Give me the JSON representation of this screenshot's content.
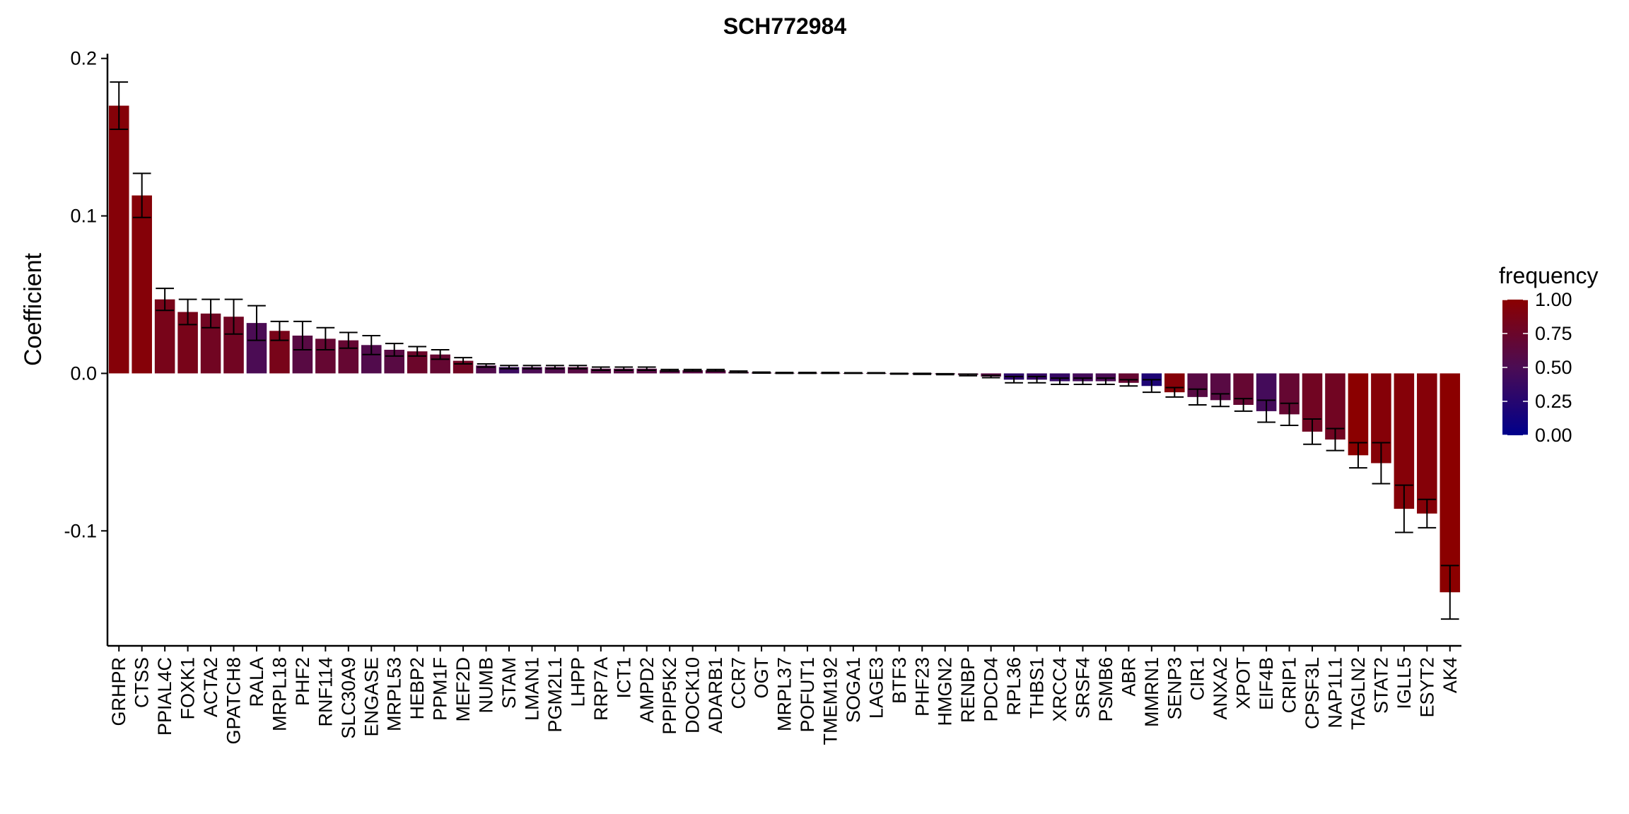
{
  "chart_data": {
    "type": "bar",
    "title": "SCH772984",
    "xlabel": "",
    "ylabel": "Coefficient",
    "ylim": [
      -0.173,
      0.203
    ],
    "yticks": [
      {
        "value": 0.2,
        "label": "0.2"
      },
      {
        "value": 0.1,
        "label": "0.1"
      },
      {
        "value": 0.0,
        "label": "0.0"
      },
      {
        "value": -0.1,
        "label": "-0.1"
      }
    ],
    "grid": false,
    "legend": {
      "title": "frequency",
      "position": "right",
      "ticks": [
        {
          "value": 1.0,
          "label": "1.00"
        },
        {
          "value": 0.75,
          "label": "0.75"
        },
        {
          "value": 0.5,
          "label": "0.50"
        },
        {
          "value": 0.25,
          "label": "0.25"
        },
        {
          "value": 0.0,
          "label": "0.00"
        }
      ],
      "colors": {
        "low": "#00008b",
        "mid": "#4b0c54",
        "high": "#8b0000"
      }
    },
    "categories": [
      "GRHPR",
      "CTSS",
      "PPIAL4C",
      "FOXK1",
      "ACTA2",
      "GPATCH8",
      "RALA",
      "MRPL18",
      "PHF2",
      "RNF114",
      "SLC30A9",
      "ENGASE",
      "MRPL53",
      "HEBP2",
      "PPM1F",
      "MEF2D",
      "NUMB",
      "STAM",
      "LMAN1",
      "PGM2L1",
      "LHPP",
      "RRP7A",
      "ICT1",
      "AMPD2",
      "PPIP5K2",
      "DOCK10",
      "ADARB1",
      "CCR7",
      "OGT",
      "MRPL37",
      "POFUT1",
      "TMEM192",
      "SOGA1",
      "LAGE3",
      "BTF3",
      "PHF23",
      "HMGN2",
      "RENBP",
      "PDCD4",
      "RPL36",
      "THBS1",
      "XRCC4",
      "SRSF4",
      "PSMB6",
      "ABR",
      "MMRN1",
      "SENP3",
      "CIR1",
      "ANXA2",
      "XPOT",
      "EIF4B",
      "CRIP1",
      "CPSF3L",
      "NAP1L1",
      "TAGLN2",
      "STAT2",
      "IGLL5",
      "ESYT2",
      "AK4"
    ],
    "values": [
      0.17,
      0.113,
      0.047,
      0.039,
      0.038,
      0.036,
      0.032,
      0.027,
      0.024,
      0.022,
      0.021,
      0.018,
      0.015,
      0.014,
      0.012,
      0.008,
      0.005,
      0.004,
      0.004,
      0.004,
      0.004,
      0.003,
      0.003,
      0.003,
      0.002,
      0.002,
      0.002,
      0.001,
      0.0005,
      0.0003,
      0.0003,
      0.0003,
      0.0002,
      0.0002,
      -0.0002,
      -0.0003,
      -0.0005,
      -0.001,
      -0.002,
      -0.004,
      -0.004,
      -0.005,
      -0.005,
      -0.005,
      -0.006,
      -0.008,
      -0.012,
      -0.015,
      -0.017,
      -0.02,
      -0.024,
      -0.026,
      -0.037,
      -0.042,
      -0.052,
      -0.057,
      -0.086,
      -0.089,
      -0.139
    ],
    "error": [
      0.015,
      0.014,
      0.007,
      0.008,
      0.009,
      0.011,
      0.011,
      0.006,
      0.009,
      0.007,
      0.005,
      0.006,
      0.004,
      0.003,
      0.003,
      0.002,
      0.001,
      0.001,
      0.001,
      0.001,
      0.001,
      0.001,
      0.001,
      0.001,
      0.0005,
      0.0005,
      0.0005,
      0.0005,
      0.0003,
      0.0003,
      0.0003,
      0.0003,
      0.0002,
      0.0002,
      0.0002,
      0.0003,
      0.0003,
      0.0005,
      0.0007,
      0.002,
      0.002,
      0.002,
      0.002,
      0.002,
      0.002,
      0.004,
      0.003,
      0.005,
      0.004,
      0.004,
      0.007,
      0.007,
      0.008,
      0.007,
      0.008,
      0.013,
      0.015,
      0.009,
      0.017
    ],
    "frequency": [
      0.95,
      0.95,
      0.85,
      0.85,
      0.8,
      0.8,
      0.5,
      0.85,
      0.6,
      0.7,
      0.7,
      0.55,
      0.6,
      0.75,
      0.7,
      0.8,
      0.55,
      0.4,
      0.5,
      0.55,
      0.6,
      0.6,
      0.6,
      0.6,
      0.6,
      0.6,
      0.6,
      0.6,
      0.6,
      0.6,
      0.6,
      0.6,
      0.6,
      0.6,
      0.6,
      0.6,
      0.6,
      0.6,
      0.6,
      0.3,
      0.35,
      0.35,
      0.45,
      0.5,
      0.7,
      0.2,
      0.95,
      0.6,
      0.6,
      0.7,
      0.45,
      0.7,
      0.8,
      0.8,
      1.0,
      0.95,
      0.95,
      0.95,
      1.0
    ]
  }
}
